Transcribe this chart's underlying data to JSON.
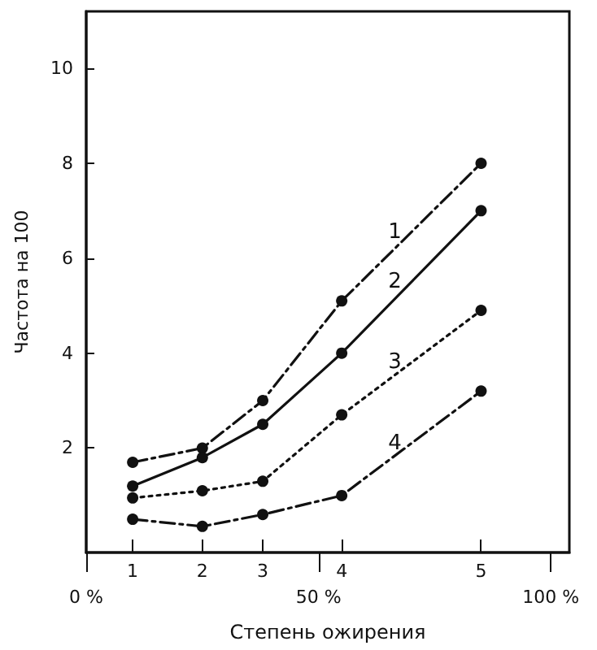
{
  "chart_data": {
    "type": "line",
    "xlabel": "Степень ожирения",
    "ylabel": "Частота на 100",
    "x": [
      10,
      25,
      38,
      55,
      85
    ],
    "xlim": [
      0,
      104
    ],
    "xticks": [
      {
        "value": 0,
        "label": "0 %"
      },
      {
        "value": 50,
        "label": "50 %"
      },
      {
        "value": 100,
        "label": "100 %"
      }
    ],
    "annotations": [
      "1",
      "2",
      "3",
      "4",
      "5"
    ],
    "ylim": [
      -0.2,
      11.2
    ],
    "yticks": [
      2,
      4,
      6,
      8,
      10
    ],
    "series": [
      {
        "name": "1",
        "color": "#111111",
        "line_style": "dashdot",
        "values": [
          1.7,
          2.0,
          3.0,
          5.1,
          8.0
        ]
      },
      {
        "name": "2",
        "color": "#111111",
        "line_style": "solid",
        "values": [
          1.2,
          1.8,
          2.5,
          4.0,
          7.0
        ]
      },
      {
        "name": "3",
        "color": "#111111",
        "line_style": "dotted",
        "values": [
          0.95,
          1.1,
          1.3,
          2.7,
          4.9
        ]
      },
      {
        "name": "4",
        "color": "#111111",
        "line_style": "dashdot",
        "values": [
          0.5,
          0.35,
          0.6,
          1.0,
          3.2
        ]
      }
    ],
    "marker": "circle",
    "grid": false,
    "legend": false
  }
}
